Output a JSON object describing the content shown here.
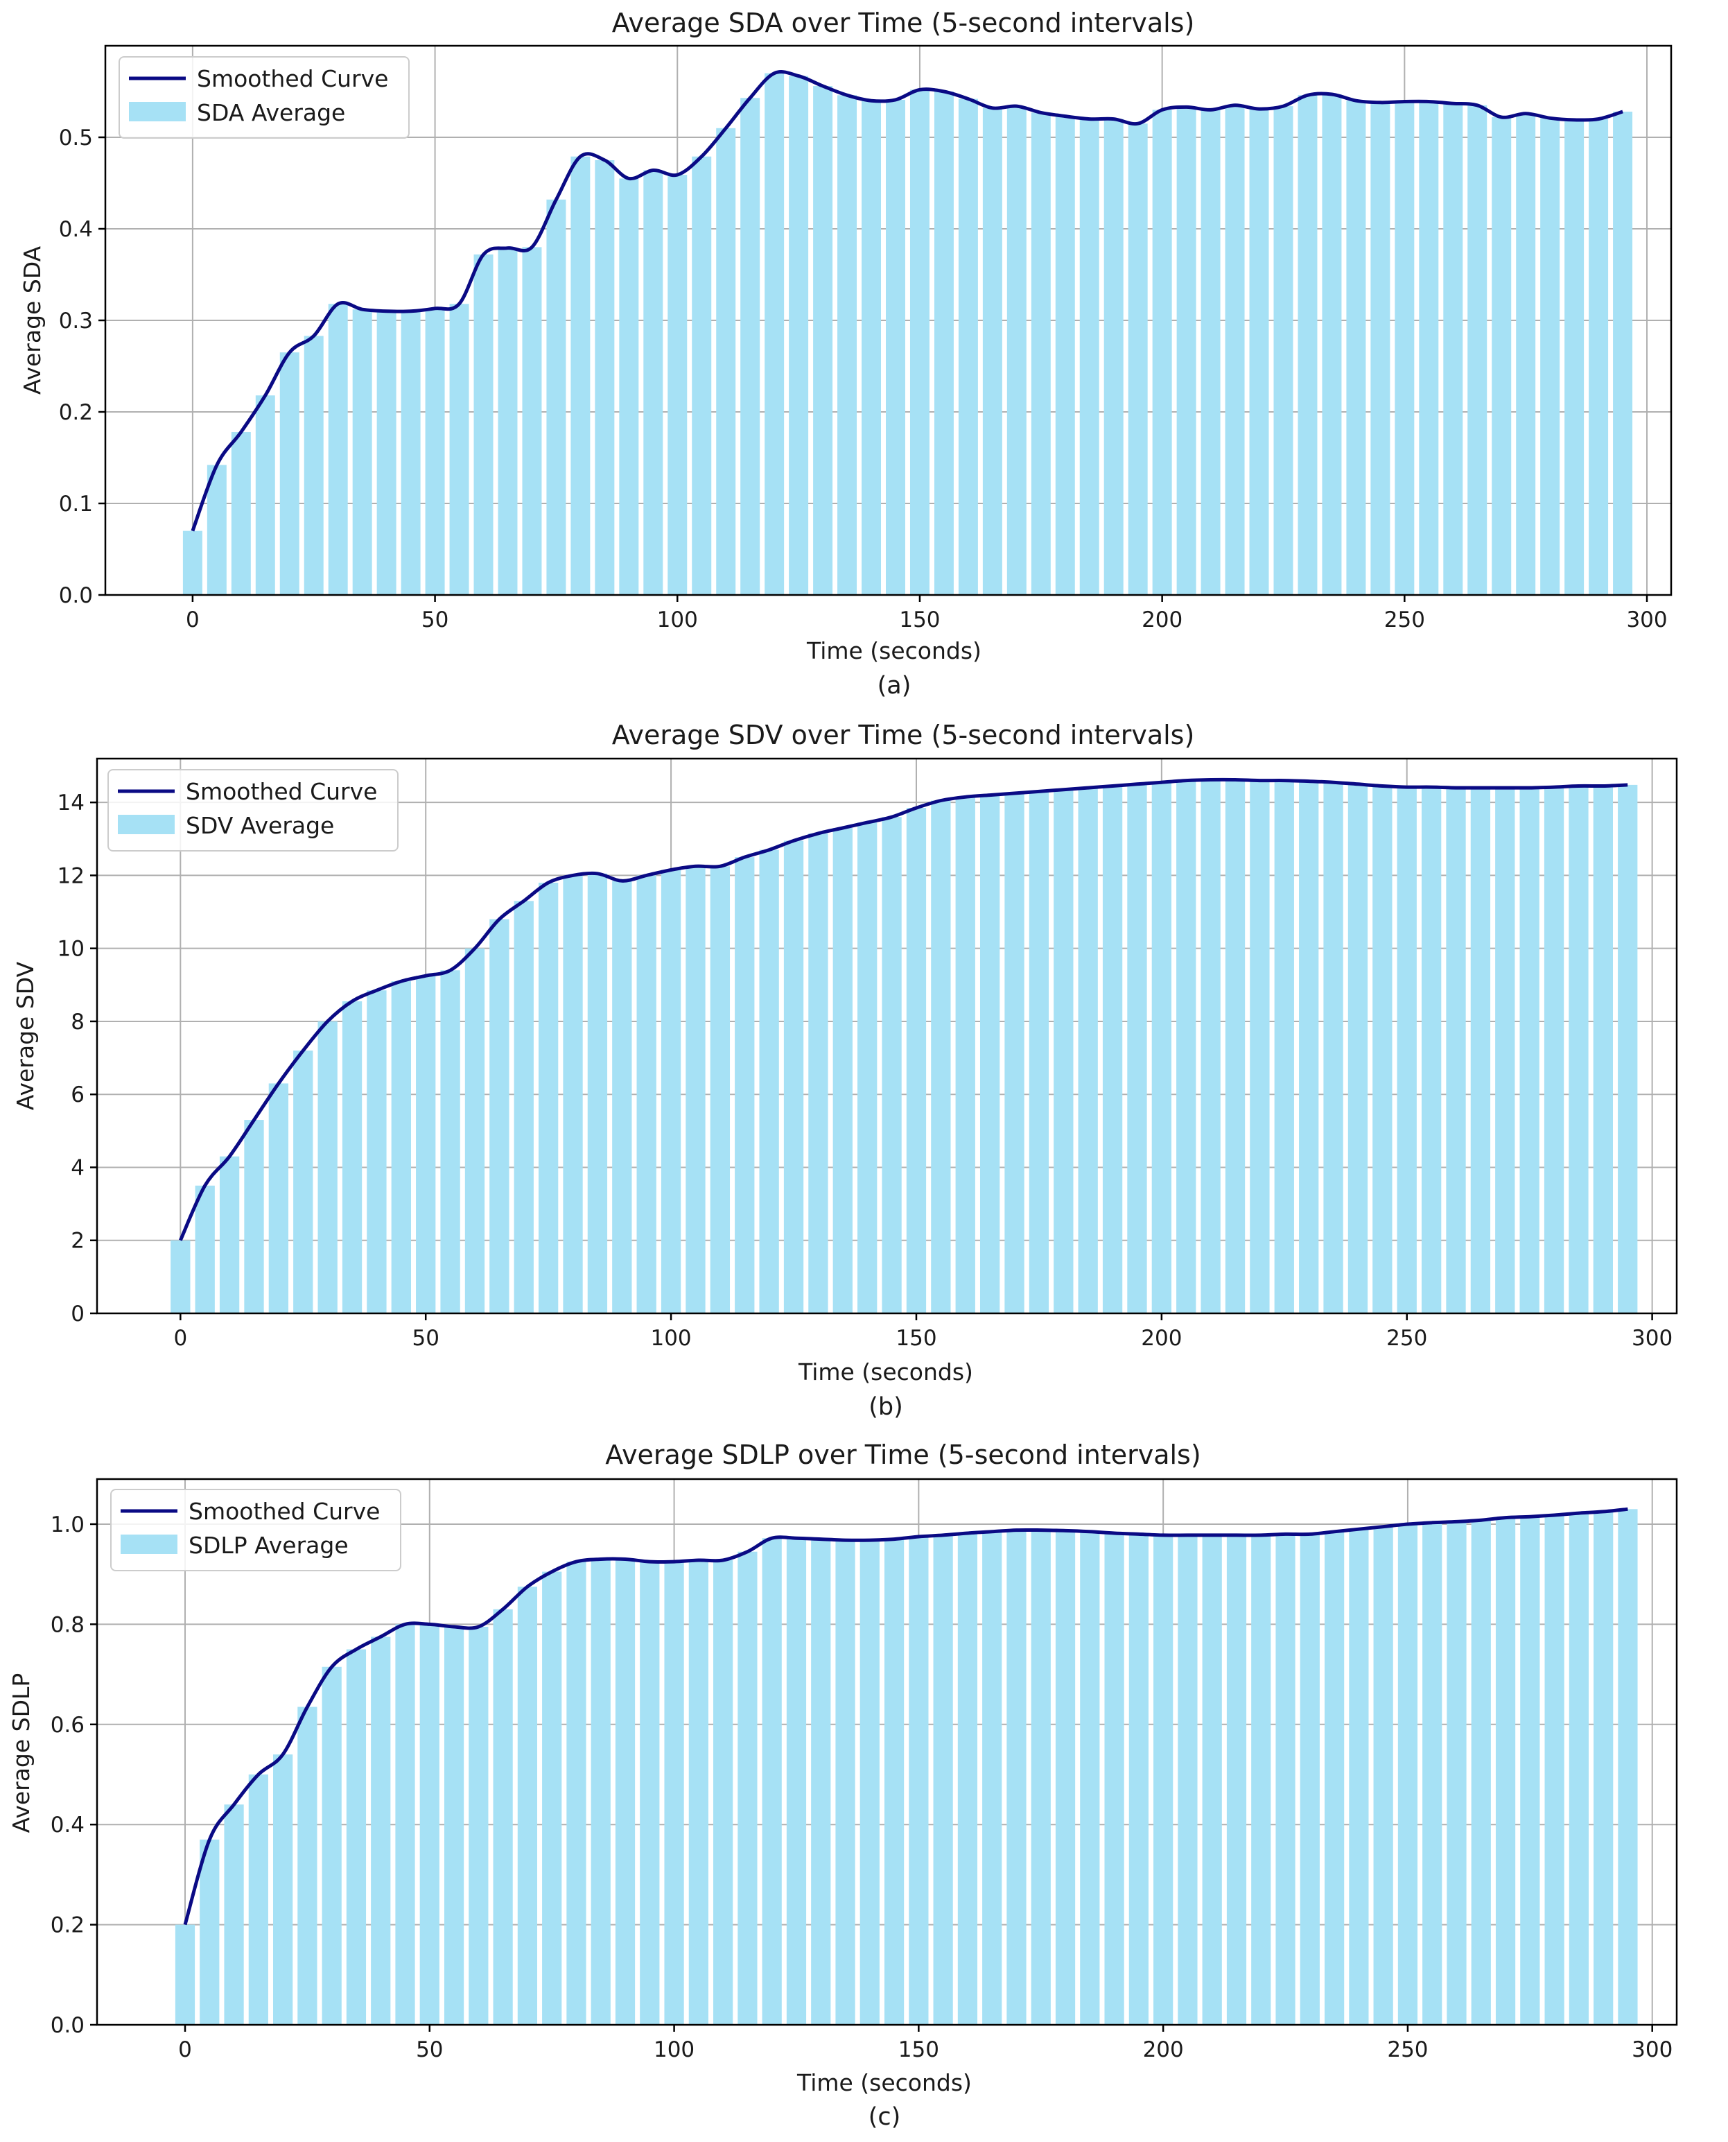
{
  "colors": {
    "bar": "#a6e1f5",
    "line": "#0a0a84"
  },
  "chart_data": [
    {
      "type": "bar",
      "panel_label": "(a)",
      "title": "Average SDA over Time (5-second intervals)",
      "xlabel": "Time (seconds)",
      "ylabel": "Average SDA",
      "xlim": [
        -18,
        305
      ],
      "ylim": [
        0,
        0.6
      ],
      "xticks": [
        0,
        50,
        100,
        150,
        200,
        250,
        300
      ],
      "xtick_labels": [
        "0",
        "50",
        "100",
        "150",
        "200",
        "250",
        "300"
      ],
      "yticks": [
        0,
        0.1,
        0.2,
        0.3,
        0.4,
        0.5
      ],
      "ytick_labels": [
        "0.0",
        "0.1",
        "0.2",
        "0.3",
        "0.4",
        "0.5"
      ],
      "grid": true,
      "legend_position": "upper-left",
      "legend": [
        "Smoothed Curve",
        "SDA Average"
      ],
      "x": [
        0,
        5,
        10,
        15,
        20,
        25,
        30,
        35,
        40,
        45,
        50,
        55,
        60,
        65,
        70,
        75,
        80,
        85,
        90,
        95,
        100,
        105,
        110,
        115,
        120,
        125,
        130,
        135,
        140,
        145,
        150,
        155,
        160,
        165,
        170,
        175,
        180,
        185,
        190,
        195,
        200,
        205,
        210,
        215,
        220,
        225,
        230,
        235,
        240,
        245,
        250,
        255,
        260,
        265,
        270,
        275,
        280,
        285,
        290,
        295
      ],
      "series": [
        {
          "name": "SDA Average",
          "kind": "bar",
          "values": [
            0.07,
            0.142,
            0.178,
            0.218,
            0.265,
            0.283,
            0.318,
            0.312,
            0.31,
            0.31,
            0.313,
            0.318,
            0.372,
            0.379,
            0.38,
            0.432,
            0.479,
            0.475,
            0.455,
            0.464,
            0.459,
            0.479,
            0.51,
            0.543,
            0.57,
            0.567,
            0.556,
            0.546,
            0.54,
            0.541,
            0.552,
            0.55,
            0.542,
            0.532,
            0.534,
            0.527,
            0.523,
            0.52,
            0.52,
            0.515,
            0.53,
            0.533,
            0.53,
            0.535,
            0.531,
            0.534,
            0.546,
            0.547,
            0.54,
            0.538,
            0.539,
            0.539,
            0.537,
            0.535,
            0.522,
            0.526,
            0.521,
            0.519,
            0.52,
            0.528
          ]
        },
        {
          "name": "Smoothed Curve",
          "kind": "line",
          "values": [
            0.07,
            0.142,
            0.178,
            0.218,
            0.265,
            0.283,
            0.318,
            0.312,
            0.31,
            0.31,
            0.313,
            0.318,
            0.372,
            0.379,
            0.38,
            0.432,
            0.479,
            0.475,
            0.455,
            0.464,
            0.459,
            0.479,
            0.51,
            0.543,
            0.57,
            0.567,
            0.556,
            0.546,
            0.54,
            0.541,
            0.552,
            0.55,
            0.542,
            0.532,
            0.534,
            0.527,
            0.523,
            0.52,
            0.52,
            0.515,
            0.53,
            0.533,
            0.53,
            0.535,
            0.531,
            0.534,
            0.546,
            0.547,
            0.54,
            0.538,
            0.539,
            0.539,
            0.537,
            0.535,
            0.522,
            0.526,
            0.521,
            0.519,
            0.52,
            0.528
          ]
        }
      ]
    },
    {
      "type": "bar",
      "panel_label": "(b)",
      "title": "Average SDV over Time (5-second intervals)",
      "xlabel": "Time (seconds)",
      "ylabel": "Average SDV",
      "xlim": [
        -17,
        305
      ],
      "ylim": [
        0,
        15.2
      ],
      "xticks": [
        0,
        50,
        100,
        150,
        200,
        250,
        300
      ],
      "xtick_labels": [
        "0",
        "50",
        "100",
        "150",
        "200",
        "250",
        "300"
      ],
      "yticks": [
        0,
        2,
        4,
        6,
        8,
        10,
        12,
        14
      ],
      "ytick_labels": [
        "0",
        "2",
        "4",
        "6",
        "8",
        "10",
        "12",
        "14"
      ],
      "grid": true,
      "legend_position": "upper-left",
      "legend": [
        "Smoothed Curve",
        "SDV Average"
      ],
      "x": [
        0,
        5,
        10,
        15,
        20,
        25,
        30,
        35,
        40,
        45,
        50,
        55,
        60,
        65,
        70,
        75,
        80,
        85,
        90,
        95,
        100,
        105,
        110,
        115,
        120,
        125,
        130,
        135,
        140,
        145,
        150,
        155,
        160,
        165,
        170,
        175,
        180,
        185,
        190,
        195,
        200,
        205,
        210,
        215,
        220,
        225,
        230,
        235,
        240,
        245,
        250,
        255,
        260,
        265,
        270,
        275,
        280,
        285,
        290,
        295
      ],
      "series": [
        {
          "name": "SDV Average",
          "kind": "bar",
          "values": [
            2.0,
            3.5,
            4.3,
            5.3,
            6.3,
            7.2,
            8.0,
            8.55,
            8.85,
            9.1,
            9.25,
            9.4,
            10.0,
            10.8,
            11.3,
            11.8,
            12.0,
            12.05,
            11.85,
            12.0,
            12.15,
            12.25,
            12.25,
            12.5,
            12.7,
            12.95,
            13.15,
            13.3,
            13.45,
            13.6,
            13.85,
            14.05,
            14.15,
            14.2,
            14.25,
            14.3,
            14.35,
            14.4,
            14.45,
            14.5,
            14.55,
            14.6,
            14.62,
            14.62,
            14.6,
            14.6,
            14.58,
            14.55,
            14.5,
            14.45,
            14.42,
            14.42,
            14.4,
            14.4,
            14.4,
            14.4,
            14.42,
            14.45,
            14.45,
            14.48
          ]
        },
        {
          "name": "Smoothed Curve",
          "kind": "line",
          "values": [
            2.0,
            3.5,
            4.3,
            5.3,
            6.3,
            7.2,
            8.0,
            8.55,
            8.85,
            9.1,
            9.25,
            9.4,
            10.0,
            10.8,
            11.3,
            11.8,
            12.0,
            12.05,
            11.85,
            12.0,
            12.15,
            12.25,
            12.25,
            12.5,
            12.7,
            12.95,
            13.15,
            13.3,
            13.45,
            13.6,
            13.85,
            14.05,
            14.15,
            14.2,
            14.25,
            14.3,
            14.35,
            14.4,
            14.45,
            14.5,
            14.55,
            14.6,
            14.62,
            14.62,
            14.6,
            14.6,
            14.58,
            14.55,
            14.5,
            14.45,
            14.42,
            14.42,
            14.4,
            14.4,
            14.4,
            14.4,
            14.42,
            14.45,
            14.45,
            14.48
          ]
        }
      ]
    },
    {
      "type": "bar",
      "panel_label": "(c)",
      "title": "Average SDLP  over Time (5-second intervals)",
      "xlabel": "Time (seconds)",
      "ylabel": "Average SDLP",
      "xlim": [
        -18,
        305
      ],
      "ylim": [
        0,
        1.09
      ],
      "xticks": [
        0,
        50,
        100,
        150,
        200,
        250,
        300
      ],
      "xtick_labels": [
        "0",
        "50",
        "100",
        "150",
        "200",
        "250",
        "300"
      ],
      "yticks": [
        0,
        0.2,
        0.4,
        0.6,
        0.8,
        1.0
      ],
      "ytick_labels": [
        "0.0",
        "0.2",
        "0.4",
        "0.6",
        "0.8",
        "1.0"
      ],
      "grid": true,
      "legend_position": "upper-left",
      "legend": [
        "Smoothed Curve",
        "SDLP  Average"
      ],
      "x": [
        0,
        5,
        10,
        15,
        20,
        25,
        30,
        35,
        40,
        45,
        50,
        55,
        60,
        65,
        70,
        75,
        80,
        85,
        90,
        95,
        100,
        105,
        110,
        115,
        120,
        125,
        130,
        135,
        140,
        145,
        150,
        155,
        160,
        165,
        170,
        175,
        180,
        185,
        190,
        195,
        200,
        205,
        210,
        215,
        220,
        225,
        230,
        235,
        240,
        245,
        250,
        255,
        260,
        265,
        270,
        275,
        280,
        285,
        290,
        295
      ],
      "series": [
        {
          "name": "SDLP  Average",
          "kind": "bar",
          "values": [
            0.2,
            0.37,
            0.44,
            0.5,
            0.54,
            0.635,
            0.715,
            0.75,
            0.775,
            0.8,
            0.8,
            0.795,
            0.795,
            0.83,
            0.875,
            0.905,
            0.925,
            0.93,
            0.93,
            0.925,
            0.925,
            0.928,
            0.928,
            0.945,
            0.972,
            0.972,
            0.97,
            0.968,
            0.968,
            0.97,
            0.975,
            0.978,
            0.982,
            0.985,
            0.988,
            0.988,
            0.987,
            0.985,
            0.982,
            0.98,
            0.978,
            0.978,
            0.978,
            0.978,
            0.978,
            0.98,
            0.98,
            0.985,
            0.99,
            0.995,
            1.0,
            1.003,
            1.005,
            1.008,
            1.013,
            1.015,
            1.018,
            1.022,
            1.025,
            1.03
          ]
        },
        {
          "name": "Smoothed Curve",
          "kind": "line",
          "values": [
            0.2,
            0.37,
            0.44,
            0.5,
            0.54,
            0.635,
            0.715,
            0.75,
            0.775,
            0.8,
            0.8,
            0.795,
            0.795,
            0.83,
            0.875,
            0.905,
            0.925,
            0.93,
            0.93,
            0.925,
            0.925,
            0.928,
            0.928,
            0.945,
            0.972,
            0.972,
            0.97,
            0.968,
            0.968,
            0.97,
            0.975,
            0.978,
            0.982,
            0.985,
            0.988,
            0.988,
            0.987,
            0.985,
            0.982,
            0.98,
            0.978,
            0.978,
            0.978,
            0.978,
            0.978,
            0.98,
            0.98,
            0.985,
            0.99,
            0.995,
            1.0,
            1.003,
            1.005,
            1.008,
            1.013,
            1.015,
            1.018,
            1.022,
            1.025,
            1.03
          ]
        }
      ]
    }
  ]
}
